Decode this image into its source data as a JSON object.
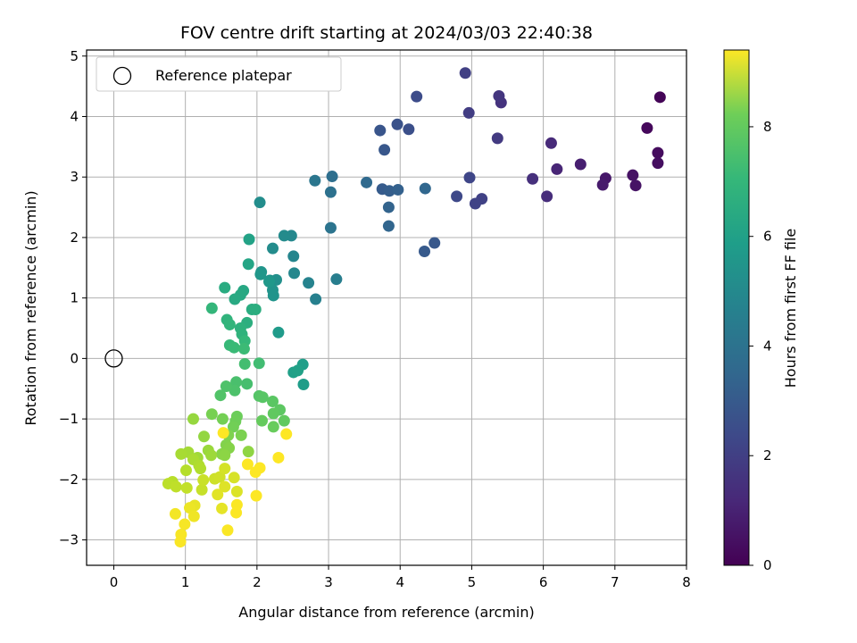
{
  "chart_data": {
    "type": "scatter",
    "title": "FOV centre drift starting at 2024/03/03 22:40:38",
    "xlabel": "Angular distance from reference (arcmin)",
    "ylabel": "Rotation from reference (arcmin)",
    "xlim": [
      -0.38,
      8.0
    ],
    "ylim": [
      -3.42,
      5.1
    ],
    "xticks": [
      0,
      1,
      2,
      3,
      4,
      5,
      6,
      7,
      8
    ],
    "yticks": [
      -3,
      -2,
      -1,
      0,
      1,
      2,
      3,
      4,
      5
    ],
    "grid": true,
    "legend": {
      "placement": "top-left",
      "entries": [
        "Reference platepar"
      ]
    },
    "reference_point": {
      "label": "Reference platepar",
      "x": 0,
      "y": 0
    },
    "colorbar": {
      "label": "Hours from first FF file",
      "colormap": "viridis",
      "range": [
        0,
        9.4
      ],
      "ticks": [
        0,
        2,
        4,
        6,
        8
      ]
    },
    "series": [
      {
        "points": [
          [
            7.63,
            4.32,
            0.1
          ],
          [
            7.45,
            3.81,
            0.2
          ],
          [
            7.6,
            3.4,
            0.3
          ],
          [
            7.6,
            3.23,
            0.35
          ],
          [
            7.25,
            3.03,
            0.45
          ],
          [
            7.29,
            2.86,
            0.5
          ],
          [
            6.87,
            2.98,
            0.6
          ],
          [
            6.83,
            2.87,
            0.7
          ],
          [
            6.52,
            3.21,
            0.8
          ],
          [
            6.19,
            3.13,
            1.0
          ],
          [
            6.11,
            3.56,
            1.1
          ],
          [
            6.05,
            2.68,
            1.2
          ],
          [
            5.85,
            2.97,
            1.3
          ],
          [
            5.41,
            4.23,
            1.4
          ],
          [
            5.38,
            4.34,
            1.5
          ],
          [
            5.36,
            3.64,
            1.6
          ],
          [
            4.96,
            4.06,
            1.7
          ],
          [
            4.91,
            4.72,
            1.8
          ],
          [
            5.14,
            2.64,
            1.85
          ],
          [
            5.05,
            2.56,
            1.9
          ],
          [
            4.97,
            2.99,
            2.0
          ],
          [
            4.79,
            2.68,
            2.1
          ],
          [
            4.23,
            4.33,
            2.2
          ],
          [
            4.12,
            3.79,
            2.3
          ],
          [
            3.96,
            3.87,
            2.4
          ],
          [
            3.72,
            3.77,
            2.5
          ],
          [
            3.78,
            3.45,
            2.55
          ],
          [
            4.48,
            1.91,
            2.6
          ],
          [
            4.34,
            1.77,
            2.65
          ],
          [
            3.75,
            2.8,
            2.7
          ],
          [
            3.85,
            2.77,
            2.8
          ],
          [
            3.97,
            2.79,
            2.9
          ],
          [
            3.84,
            2.5,
            3.0
          ],
          [
            3.84,
            2.19,
            3.05
          ],
          [
            4.35,
            2.81,
            3.1
          ],
          [
            3.53,
            2.91,
            3.2
          ],
          [
            3.05,
            3.01,
            3.4
          ],
          [
            3.03,
            2.75,
            3.5
          ],
          [
            3.03,
            2.16,
            3.6
          ],
          [
            2.81,
            2.94,
            3.7
          ],
          [
            3.11,
            1.31,
            4.0
          ],
          [
            2.82,
            0.98,
            4.1
          ],
          [
            2.72,
            1.25,
            4.2
          ],
          [
            2.51,
            1.69,
            4.3
          ],
          [
            2.52,
            1.41,
            4.35
          ],
          [
            2.48,
            2.03,
            4.4
          ],
          [
            2.38,
            2.03,
            4.5
          ],
          [
            2.22,
            1.82,
            4.55
          ],
          [
            2.04,
            2.58,
            4.6
          ],
          [
            2.27,
            1.3,
            4.7
          ],
          [
            2.18,
            1.29,
            4.75
          ],
          [
            2.22,
            1.13,
            4.8
          ],
          [
            2.23,
            1.04,
            4.85
          ],
          [
            2.06,
            1.43,
            4.9
          ],
          [
            2.05,
            1.39,
            4.95
          ],
          [
            2.17,
            1.27,
            5.0
          ],
          [
            2.3,
            0.43,
            5.1
          ],
          [
            2.65,
            -0.43,
            5.2
          ],
          [
            2.64,
            -0.1,
            5.25
          ],
          [
            2.51,
            -0.23,
            5.3
          ],
          [
            2.57,
            -0.2,
            5.35
          ],
          [
            1.89,
            1.97,
            5.4
          ],
          [
            1.88,
            1.56,
            5.5
          ],
          [
            1.81,
            1.12,
            5.6
          ],
          [
            1.77,
            1.05,
            5.65
          ],
          [
            1.69,
            0.98,
            5.7
          ],
          [
            1.55,
            1.17,
            5.75
          ],
          [
            1.93,
            0.81,
            5.8
          ],
          [
            1.98,
            0.81,
            5.85
          ],
          [
            1.86,
            0.59,
            5.9
          ],
          [
            1.77,
            0.5,
            6.0
          ],
          [
            1.79,
            0.4,
            6.05
          ],
          [
            1.58,
            0.64,
            6.1
          ],
          [
            1.62,
            0.56,
            6.15
          ],
          [
            1.37,
            0.83,
            6.2
          ],
          [
            1.83,
            0.29,
            6.25
          ],
          [
            1.62,
            0.22,
            6.3
          ],
          [
            1.68,
            0.18,
            6.35
          ],
          [
            1.82,
            0.16,
            6.4
          ],
          [
            2.03,
            -0.08,
            6.5
          ],
          [
            1.83,
            -0.09,
            6.55
          ],
          [
            1.86,
            -0.42,
            6.6
          ],
          [
            1.71,
            -0.39,
            6.65
          ],
          [
            1.69,
            -0.53,
            6.7
          ],
          [
            1.57,
            -0.46,
            6.75
          ],
          [
            1.49,
            -0.61,
            6.8
          ],
          [
            2.03,
            -0.62,
            6.85
          ],
          [
            2.08,
            -0.64,
            6.9
          ],
          [
            2.22,
            -0.71,
            6.95
          ],
          [
            2.32,
            -0.85,
            7.0
          ],
          [
            2.23,
            -0.91,
            7.05
          ],
          [
            2.38,
            -1.03,
            7.1
          ],
          [
            2.07,
            -1.03,
            7.15
          ],
          [
            2.23,
            -1.13,
            7.2
          ],
          [
            1.72,
            -0.96,
            7.25
          ],
          [
            1.7,
            -1.04,
            7.3
          ],
          [
            1.67,
            -1.13,
            7.35
          ],
          [
            1.52,
            -1.0,
            7.4
          ],
          [
            1.37,
            -0.92,
            7.45
          ],
          [
            1.78,
            -1.27,
            7.5
          ],
          [
            1.6,
            -1.27,
            7.55
          ],
          [
            1.57,
            -1.43,
            7.6
          ],
          [
            1.61,
            -1.48,
            7.65
          ],
          [
            1.51,
            -1.58,
            7.7
          ],
          [
            1.55,
            -1.6,
            7.75
          ],
          [
            1.88,
            -1.54,
            7.8
          ],
          [
            1.26,
            -1.29,
            7.85
          ],
          [
            1.11,
            -1.0,
            7.9
          ],
          [
            1.32,
            -1.52,
            7.95
          ],
          [
            1.36,
            -1.6,
            8.0
          ],
          [
            1.17,
            -1.64,
            8.05
          ],
          [
            1.04,
            -1.55,
            8.1
          ],
          [
            0.94,
            -1.58,
            8.15
          ],
          [
            1.11,
            -1.67,
            8.2
          ],
          [
            1.19,
            -1.77,
            8.25
          ],
          [
            1.21,
            -1.82,
            8.3
          ],
          [
            1.01,
            -1.85,
            8.35
          ],
          [
            0.82,
            -2.04,
            8.4
          ],
          [
            0.76,
            -2.07,
            8.45
          ],
          [
            0.87,
            -2.12,
            8.5
          ],
          [
            1.02,
            -2.14,
            8.55
          ],
          [
            1.23,
            -2.17,
            8.6
          ],
          [
            1.25,
            -2.01,
            8.65
          ],
          [
            1.41,
            -1.99,
            8.7
          ],
          [
            1.48,
            -1.96,
            8.75
          ],
          [
            1.55,
            -1.82,
            8.8
          ],
          [
            1.68,
            -1.97,
            8.85
          ],
          [
            1.72,
            -2.2,
            8.9
          ],
          [
            1.55,
            -2.12,
            8.95
          ],
          [
            1.45,
            -2.25,
            9.0
          ],
          [
            1.51,
            -2.48,
            9.05
          ],
          [
            1.13,
            -2.43,
            9.1
          ],
          [
            1.06,
            -2.47,
            9.15
          ],
          [
            1.12,
            -2.61,
            9.2
          ],
          [
            0.86,
            -2.57,
            9.25
          ],
          [
            0.99,
            -2.74,
            9.3
          ],
          [
            0.94,
            -2.91,
            9.32
          ],
          [
            0.93,
            -3.03,
            9.34
          ],
          [
            1.59,
            -2.84,
            9.35
          ],
          [
            1.72,
            -2.42,
            9.36
          ],
          [
            1.71,
            -2.55,
            9.37
          ],
          [
            1.99,
            -2.27,
            9.38
          ],
          [
            1.98,
            -1.88,
            9.38
          ],
          [
            2.04,
            -1.81,
            9.39
          ],
          [
            1.87,
            -1.75,
            9.39
          ],
          [
            2.3,
            -1.64,
            9.4
          ],
          [
            2.41,
            -1.25,
            9.4
          ],
          [
            1.53,
            -1.23,
            9.4
          ]
        ]
      }
    ]
  }
}
